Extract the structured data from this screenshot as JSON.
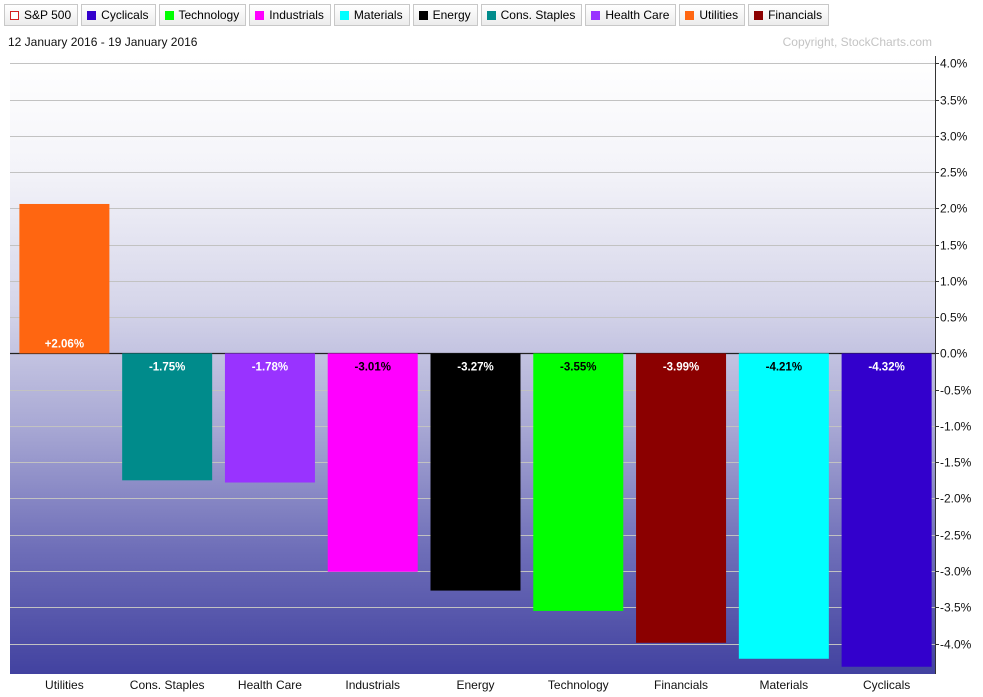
{
  "legend": [
    {
      "label": "S&P 500",
      "color": "#d42020",
      "hollow": true
    },
    {
      "label": "Cyclicals",
      "color": "#3300cc",
      "hollow": false
    },
    {
      "label": "Technology",
      "color": "#00ff00",
      "hollow": false
    },
    {
      "label": "Industrials",
      "color": "#ff00ff",
      "hollow": false
    },
    {
      "label": "Materials",
      "color": "#00ffff",
      "hollow": false
    },
    {
      "label": "Energy",
      "color": "#000000",
      "hollow": false
    },
    {
      "label": "Cons. Staples",
      "color": "#008b8b",
      "hollow": false
    },
    {
      "label": "Health Care",
      "color": "#9933ff",
      "hollow": false
    },
    {
      "label": "Utilities",
      "color": "#ff6611",
      "hollow": false
    },
    {
      "label": "Financials",
      "color": "#8b0000",
      "hollow": false
    }
  ],
  "date_range": "12 January 2016 - 19 January 2016",
  "copyright": "Copyright, StockCharts.com",
  "chart_data": {
    "type": "bar",
    "categories": [
      "Utilities",
      "Cons. Staples",
      "Health Care",
      "Industrials",
      "Energy",
      "Technology",
      "Financials",
      "Materials",
      "Cyclicals"
    ],
    "values": [
      2.06,
      -1.75,
      -1.78,
      -3.01,
      -3.27,
      -3.55,
      -3.99,
      -4.21,
      -4.32
    ],
    "data_labels": [
      "+2.06%",
      "-1.75%",
      "-1.78%",
      "-3.01%",
      "-3.27%",
      "-3.55%",
      "-3.99%",
      "-4.21%",
      "-4.32%"
    ],
    "colors": [
      "#ff6611",
      "#008b8b",
      "#9933ff",
      "#ff00ff",
      "#000000",
      "#00ff00",
      "#8b0000",
      "#00ffff",
      "#3300cc"
    ],
    "label_colors": [
      "#ffffff",
      "#ffffff",
      "#ffffff",
      "#000000",
      "#ffffff",
      "#000000",
      "#ffffff",
      "#000000",
      "#ffffff"
    ],
    "yticks": [
      4.0,
      3.5,
      3.0,
      2.5,
      2.0,
      1.5,
      1.0,
      0.5,
      0.0,
      -0.5,
      -1.0,
      -1.5,
      -2.0,
      -2.5,
      -3.0,
      -3.5,
      -4.0
    ],
    "ytick_labels": [
      "4.0%",
      "3.5%",
      "3.0%",
      "2.5%",
      "2.0%",
      "1.5%",
      "1.0%",
      "0.5%",
      "0.0%",
      "-0.5%",
      "-1.0%",
      "-1.5%",
      "-2.0%",
      "-2.5%",
      "-3.0%",
      "-3.5%",
      "-4.0%"
    ],
    "ylim": [
      -4.42,
      4.1
    ],
    "grid": true,
    "y_axis_position": "right",
    "xlabel": "",
    "ylabel": ""
  }
}
